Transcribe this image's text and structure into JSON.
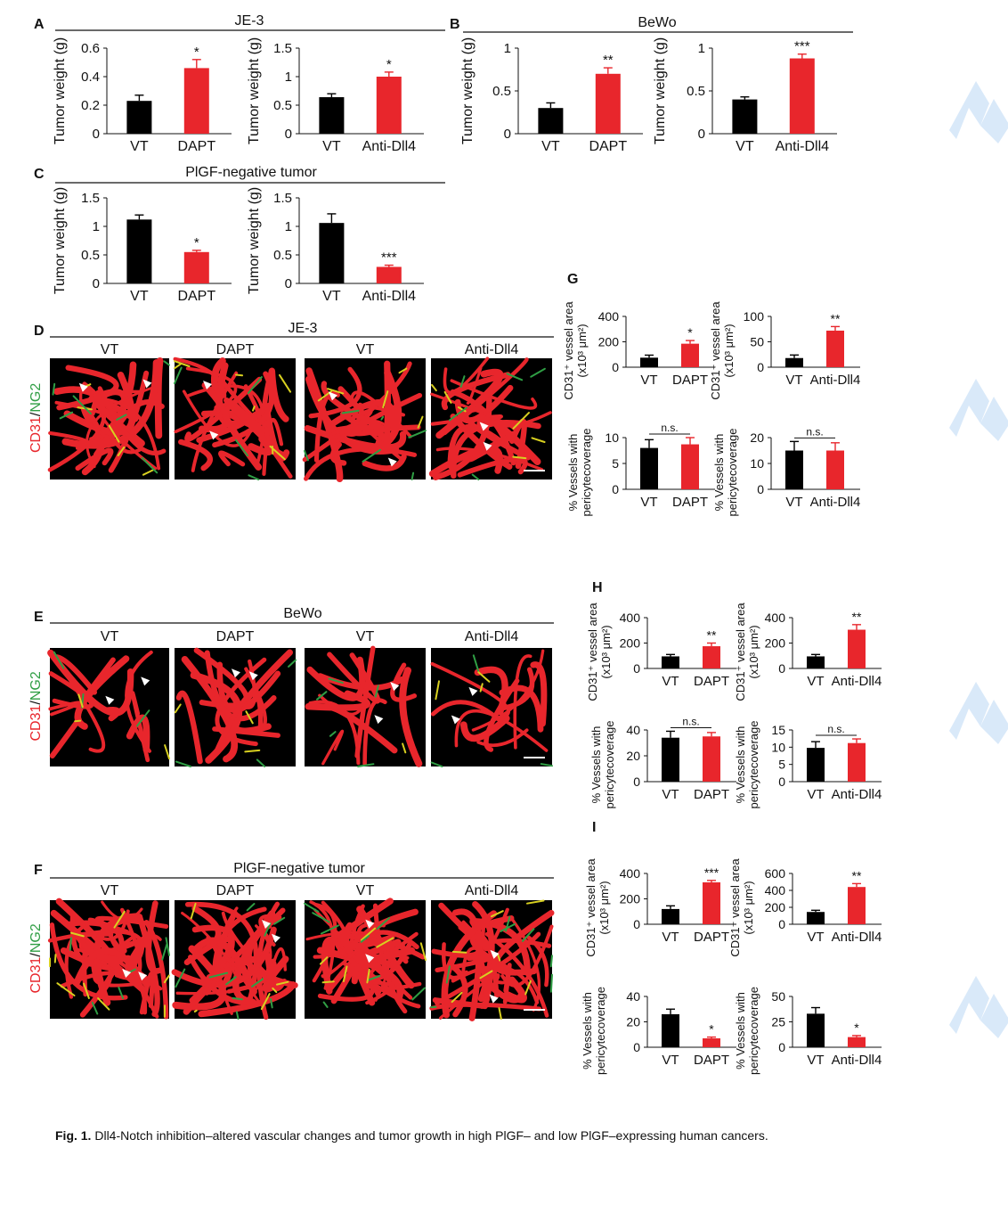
{
  "caption": {
    "label": "Fig. 1.",
    "text": "Dll4-Notch inhibition–altered vascular changes and tumor growth in high PlGF– and low PlGF–expressing human cancers."
  },
  "colors": {
    "control": "#000000",
    "treated": "#e8262c",
    "micro_bg": "#000000",
    "cd31": "#e8262c",
    "ng2": "#2f9e44"
  },
  "icons": [
    "watermark-logo-icon",
    "arrowhead-icon",
    "scale-bar"
  ],
  "panels": {
    "A": {
      "letter": "A",
      "title": "JE-3"
    },
    "B": {
      "letter": "B",
      "title": "BeWo"
    },
    "C": {
      "letter": "C",
      "title": "PlGF-negative tumor"
    },
    "D": {
      "letter": "D",
      "title": "JE-3",
      "stain_red": "CD31",
      "stain_green": "NG2",
      "slash": "/",
      "columns": [
        "VT",
        "DAPT",
        "VT",
        "Anti-Dll4"
      ]
    },
    "E": {
      "letter": "E",
      "title": "BeWo",
      "stain_red": "CD31",
      "stain_green": "NG2",
      "slash": "/",
      "columns": [
        "VT",
        "DAPT",
        "VT",
        "Anti-Dll4"
      ]
    },
    "F": {
      "letter": "F",
      "title": "PlGF-negative tumor",
      "stain_red": "CD31",
      "stain_green": "NG2",
      "slash": "/",
      "columns": [
        "VT",
        "DAPT",
        "VT",
        "Anti-Dll4"
      ]
    },
    "G": {
      "letter": "G"
    },
    "H": {
      "letter": "H"
    },
    "I": {
      "letter": "I"
    }
  },
  "chart_data": [
    {
      "id": "A1",
      "type": "bar",
      "panel": "A",
      "ylabel": "Tumor weight (g)",
      "categories": [
        "VT",
        "DAPT"
      ],
      "values": [
        0.23,
        0.46
      ],
      "errors": [
        0.04,
        0.06
      ],
      "ylim": [
        0,
        0.6
      ],
      "yticks": [
        "0",
        "0.2",
        "0.4",
        "0.6"
      ],
      "sig": [
        "",
        "*"
      ]
    },
    {
      "id": "A2",
      "type": "bar",
      "panel": "A",
      "ylabel": "Tumor weight (g)",
      "categories": [
        "VT",
        "Anti-Dll4"
      ],
      "values": [
        0.64,
        1.0
      ],
      "errors": [
        0.06,
        0.08
      ],
      "ylim": [
        0,
        1.5
      ],
      "yticks": [
        "0",
        "0.5",
        "1",
        "1.5"
      ],
      "sig": [
        "",
        "*"
      ]
    },
    {
      "id": "B1",
      "type": "bar",
      "panel": "B",
      "ylabel": "Tumor weight (g)",
      "categories": [
        "VT",
        "DAPT"
      ],
      "values": [
        0.3,
        0.7
      ],
      "errors": [
        0.06,
        0.07
      ],
      "ylim": [
        0,
        1
      ],
      "yticks": [
        "0",
        "0.5",
        "1"
      ],
      "sig": [
        "",
        "**"
      ]
    },
    {
      "id": "B2",
      "type": "bar",
      "panel": "B",
      "ylabel": "Tumor weight (g)",
      "categories": [
        "VT",
        "Anti-Dll4"
      ],
      "values": [
        0.4,
        0.88
      ],
      "errors": [
        0.03,
        0.05
      ],
      "ylim": [
        0,
        1
      ],
      "yticks": [
        "0",
        "0.5",
        "1"
      ],
      "sig": [
        "",
        "***"
      ]
    },
    {
      "id": "C1",
      "type": "bar",
      "panel": "C",
      "ylabel": "Tumor weight (g)",
      "categories": [
        "VT",
        "DAPT"
      ],
      "values": [
        1.12,
        0.55
      ],
      "errors": [
        0.08,
        0.03
      ],
      "ylim": [
        0,
        1.5
      ],
      "yticks": [
        "0",
        "0.5",
        "1",
        "1.5"
      ],
      "sig": [
        "",
        "*"
      ]
    },
    {
      "id": "C2",
      "type": "bar",
      "panel": "C",
      "ylabel": "Tumor weight (g)",
      "categories": [
        "VT",
        "Anti-Dll4"
      ],
      "values": [
        1.06,
        0.29
      ],
      "errors": [
        0.16,
        0.03
      ],
      "ylim": [
        0,
        1.5
      ],
      "yticks": [
        "0",
        "0.5",
        "1",
        "1.5"
      ],
      "sig": [
        "",
        "***"
      ]
    },
    {
      "id": "G1",
      "type": "bar",
      "panel": "G",
      "ylabel": [
        "CD31⁺ vessel area",
        "(x10³ μm²)"
      ],
      "categories": [
        "VT",
        "DAPT"
      ],
      "values": [
        75,
        185
      ],
      "errors": [
        20,
        25
      ],
      "ylim": [
        0,
        400
      ],
      "yticks": [
        "0",
        "200",
        "400"
      ],
      "sig": [
        "",
        "*"
      ]
    },
    {
      "id": "G2",
      "type": "bar",
      "panel": "G",
      "ylabel": [
        "CD31⁺ vessel area",
        "(x10³ μm²)"
      ],
      "categories": [
        "VT",
        "Anti-Dll4"
      ],
      "values": [
        18,
        72
      ],
      "errors": [
        6,
        8
      ],
      "ylim": [
        0,
        100
      ],
      "yticks": [
        "0",
        "50",
        "100"
      ],
      "sig": [
        "",
        "**"
      ]
    },
    {
      "id": "G3",
      "type": "bar",
      "panel": "G",
      "ylabel": [
        "% Vessels with",
        "pericytecoverage"
      ],
      "categories": [
        "VT",
        "DAPT"
      ],
      "values": [
        8,
        8.7
      ],
      "errors": [
        1.6,
        1.3
      ],
      "ylim": [
        0,
        10
      ],
      "yticks": [
        "0",
        "5",
        "10"
      ],
      "sig": [
        "",
        ""
      ],
      "ns": "n.s."
    },
    {
      "id": "G4",
      "type": "bar",
      "panel": "G",
      "ylabel": [
        "% Vessels with",
        "pericytecoverage"
      ],
      "categories": [
        "VT",
        "Anti-Dll4"
      ],
      "values": [
        15,
        15
      ],
      "errors": [
        3.5,
        3
      ],
      "ylim": [
        0,
        20
      ],
      "yticks": [
        "0",
        "10",
        "20"
      ],
      "sig": [
        "",
        ""
      ],
      "ns": "n.s."
    },
    {
      "id": "H1",
      "type": "bar",
      "panel": "H",
      "ylabel": [
        "CD31⁺ vessel area",
        "(x10³ μm²)"
      ],
      "categories": [
        "VT",
        "DAPT"
      ],
      "values": [
        95,
        175
      ],
      "errors": [
        15,
        25
      ],
      "ylim": [
        0,
        400
      ],
      "yticks": [
        "0",
        "200",
        "400"
      ],
      "sig": [
        "",
        "**"
      ]
    },
    {
      "id": "H2",
      "type": "bar",
      "panel": "H",
      "ylabel": [
        "CD31⁺ vessel area",
        "(x10³ μm²)"
      ],
      "categories": [
        "VT",
        "Anti-Dll4"
      ],
      "values": [
        95,
        305
      ],
      "errors": [
        15,
        40
      ],
      "ylim": [
        0,
        400
      ],
      "yticks": [
        "0",
        "200",
        "400"
      ],
      "sig": [
        "",
        "**"
      ]
    },
    {
      "id": "H3",
      "type": "bar",
      "panel": "H",
      "ylabel": [
        "% Vessels with",
        "pericytecoverage"
      ],
      "categories": [
        "VT",
        "DAPT"
      ],
      "values": [
        34,
        35
      ],
      "errors": [
        5,
        3
      ],
      "ylim": [
        0,
        40
      ],
      "yticks": [
        "0",
        "20",
        "40"
      ],
      "sig": [
        "",
        ""
      ],
      "ns": "n.s."
    },
    {
      "id": "H4",
      "type": "bar",
      "panel": "H",
      "ylabel": [
        "% Vessels with",
        "pericytecoverage"
      ],
      "categories": [
        "VT",
        "Anti-Dll4"
      ],
      "values": [
        9.8,
        11.2
      ],
      "errors": [
        1.8,
        1.2
      ],
      "ylim": [
        0,
        15
      ],
      "yticks": [
        "0",
        "5",
        "10",
        "15"
      ],
      "sig": [
        "",
        ""
      ],
      "ns": "n.s."
    },
    {
      "id": "I1",
      "type": "bar",
      "panel": "I",
      "ylabel": [
        "CD31⁺ vessel area",
        "(x10³ μm²)"
      ],
      "categories": [
        "VT",
        "DAPT"
      ],
      "values": [
        120,
        330
      ],
      "errors": [
        25,
        15
      ],
      "ylim": [
        0,
        400
      ],
      "yticks": [
        "0",
        "200",
        "400"
      ],
      "sig": [
        "",
        "***"
      ]
    },
    {
      "id": "I2",
      "type": "bar",
      "panel": "I",
      "ylabel": [
        "CD31⁺ vessel area",
        "(x10³ μm²)"
      ],
      "categories": [
        "VT",
        "Anti-Dll4"
      ],
      "values": [
        145,
        440
      ],
      "errors": [
        20,
        40
      ],
      "ylim": [
        0,
        600
      ],
      "yticks": [
        "0",
        "200",
        "400",
        "600"
      ],
      "sig": [
        "",
        "**"
      ]
    },
    {
      "id": "I3",
      "type": "bar",
      "panel": "I",
      "ylabel": [
        "% Vessels with",
        "pericytecoverage"
      ],
      "categories": [
        "VT",
        "DAPT"
      ],
      "values": [
        26,
        7
      ],
      "errors": [
        4,
        1
      ],
      "ylim": [
        0,
        40
      ],
      "yticks": [
        "0",
        "20",
        "40"
      ],
      "sig": [
        "",
        "*"
      ]
    },
    {
      "id": "I4",
      "type": "bar",
      "panel": "I",
      "ylabel": [
        "% Vessels with",
        "pericytecoverage"
      ],
      "categories": [
        "VT",
        "Anti-Dll4"
      ],
      "values": [
        33,
        10
      ],
      "errors": [
        6,
        1.5
      ],
      "ylim": [
        0,
        50
      ],
      "yticks": [
        "0",
        "25",
        "50"
      ],
      "sig": [
        "",
        "*"
      ]
    }
  ]
}
